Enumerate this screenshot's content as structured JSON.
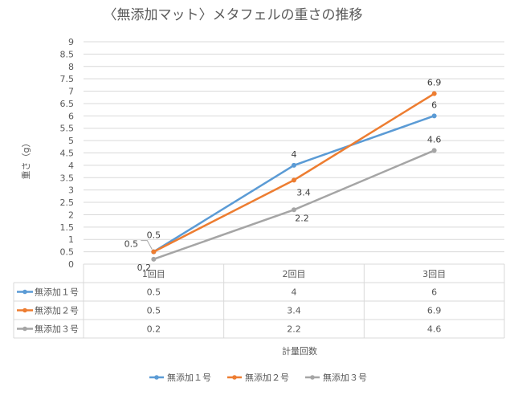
{
  "chart_data": {
    "type": "line",
    "title": "〈無添加マット〉メタフェルの重さの推移",
    "xlabel": "計量回数",
    "ylabel": "重さ（g）",
    "categories": [
      "1回目",
      "2回目",
      "3回目"
    ],
    "ylim": [
      0,
      9
    ],
    "ytick_step": 0.5,
    "yticks": [
      "0",
      "0.5",
      "1",
      "1.5",
      "2",
      "2.5",
      "3",
      "3.5",
      "4",
      "4.5",
      "5",
      "5.5",
      "6",
      "6.5",
      "7",
      "7.5",
      "8",
      "8.5",
      "9"
    ],
    "series": [
      {
        "name": "無添加１号",
        "values": [
          0.5,
          4,
          6
        ],
        "value_labels": [
          "0.5",
          "4",
          "6"
        ],
        "color": "#5b9bd5"
      },
      {
        "name": "無添加２号",
        "values": [
          0.5,
          3.4,
          6.9
        ],
        "value_labels": [
          "0.5",
          "3.4",
          "6.9"
        ],
        "color": "#ed7d31"
      },
      {
        "name": "無添加３号",
        "values": [
          0.2,
          2.2,
          4.6
        ],
        "value_labels": [
          "0.2",
          "2.2",
          "4.6"
        ],
        "color": "#a5a5a5"
      }
    ],
    "grid": true,
    "legend_position": "bottom",
    "data_table": true
  }
}
